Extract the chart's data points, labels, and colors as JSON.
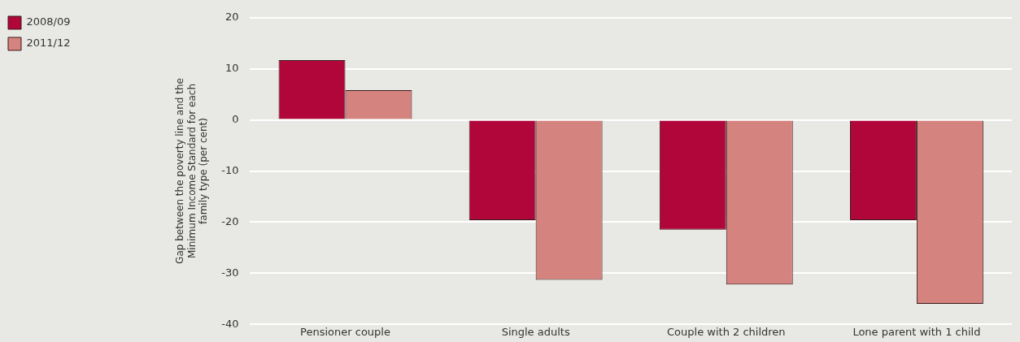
{
  "chart_data": {
    "type": "bar",
    "ylabel": "Gap between the poverty line and the Minimum Income Standard for each family type (per cent)",
    "categories": [
      "Pensioner couple",
      "Single adults",
      "Couple with 2 children",
      "Lone parent with 1 child"
    ],
    "series": [
      {
        "name": "2008/09",
        "color": "#b0063a",
        "values": [
          11.7,
          -19.6,
          -21.5,
          -19.6
        ]
      },
      {
        "name": "2011/12",
        "color": "#d5837f",
        "values": [
          5.8,
          -31.3,
          -32.2,
          -36.0
        ]
      }
    ],
    "ylim": [
      -40,
      20
    ],
    "yticks": [
      -40,
      -30,
      -20,
      -10,
      0,
      10,
      20
    ],
    "grid": "y",
    "legend": "left"
  }
}
